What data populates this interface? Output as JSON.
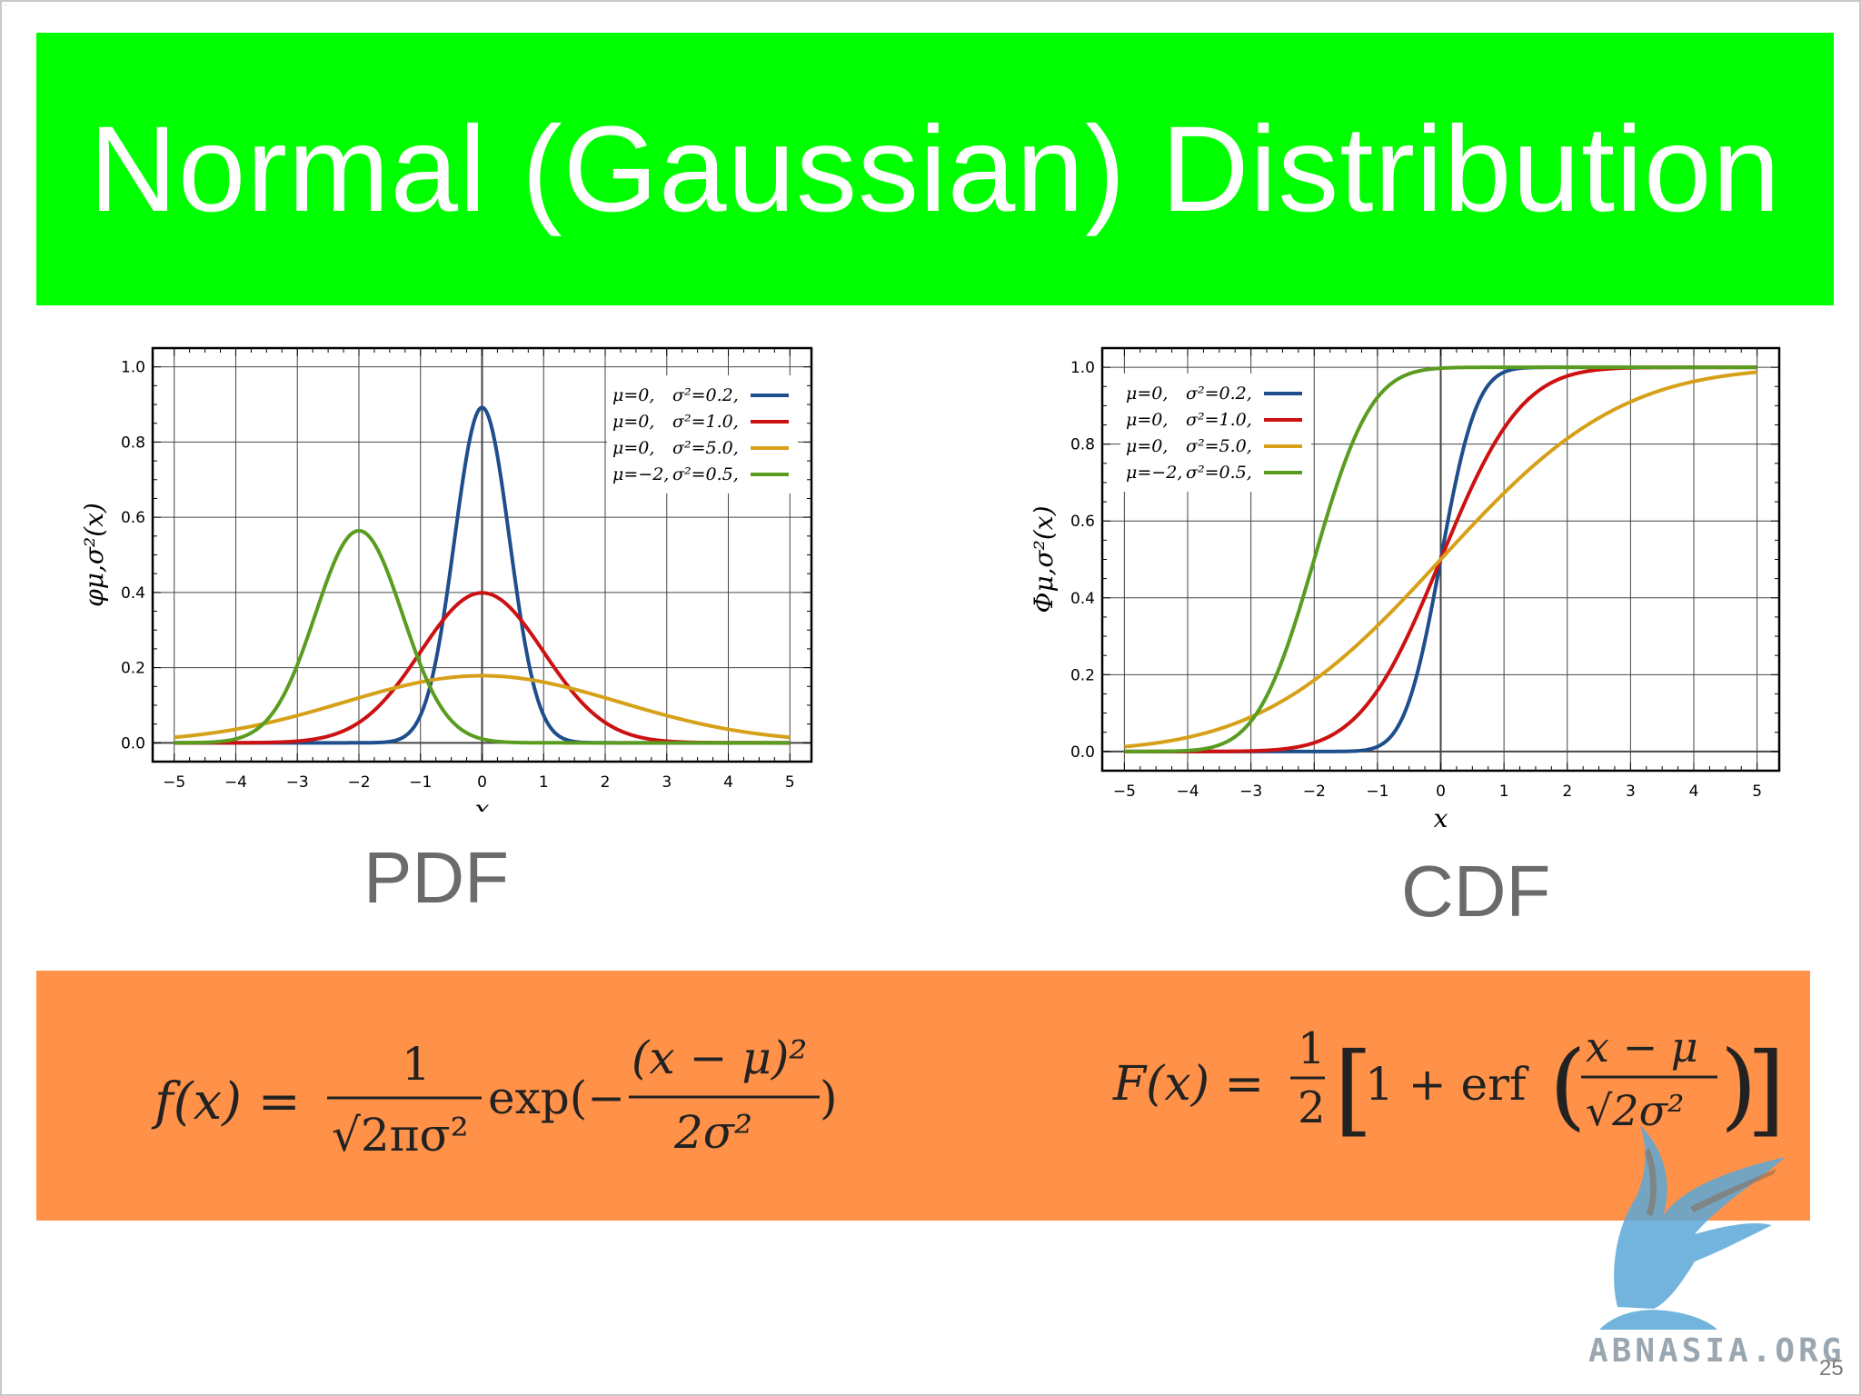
{
  "slide": {
    "title": "Normal (Gaussian) Distribution",
    "page_number": "25",
    "corner_mark": "…",
    "logo_text": "ABNASIA.ORG",
    "colors": {
      "title_banner": "#00ff00",
      "formula_banner": "#ff9148",
      "caption": "#6b6b6b"
    }
  },
  "captions": {
    "pdf": "PDF",
    "cdf": "CDF"
  },
  "formulas": {
    "pdf": {
      "lhs": "f(x) =",
      "numerator": "1",
      "denominator": "√2πσ²",
      "exp": "exp(−",
      "exp_numerator": "(x − μ)²",
      "exp_denominator": "2σ²",
      "close": ")"
    },
    "cdf": {
      "lhs": "F(x) =",
      "numerator": "1",
      "denominator": "2",
      "bracket_open": "[",
      "inner": "1 + erf",
      "paren_open": "(",
      "inner_numerator": "x − μ",
      "inner_denominator": "√2σ²",
      "paren_close": ")",
      "bracket_close": "]"
    }
  },
  "chart_data": [
    {
      "type": "line",
      "function": "pdf",
      "xlabel": "x",
      "ylabel": "φμ,σ²(x)",
      "xlim": [
        -5.35,
        5.35
      ],
      "ylim": [
        -0.05,
        1.05
      ],
      "xticks": [
        -5,
        -4,
        -3,
        -2,
        -1,
        0,
        1,
        2,
        3,
        4,
        5
      ],
      "xtick_labels": [
        "−5",
        "−4",
        "−3",
        "−2",
        "−1",
        "0",
        "1",
        "2",
        "3",
        "4",
        "5"
      ],
      "yticks": [
        0.0,
        0.2,
        0.4,
        0.6,
        0.8,
        1.0
      ],
      "ytick_labels": [
        "0.0",
        "0.2",
        "0.4",
        "0.6",
        "0.8",
        "1.0"
      ],
      "grid": true,
      "legend_position": "top-right",
      "series": [
        {
          "name": "μ=0,   σ²=0.2,",
          "label_mu": "μ=0,",
          "label_var": "σ²=0.2,",
          "mu": 0,
          "variance": 0.2,
          "color": "#1f4e8c"
        },
        {
          "name": "μ=0,   σ²=1.0,",
          "label_mu": "μ=0,",
          "label_var": "σ²=1.0,",
          "mu": 0,
          "variance": 1.0,
          "color": "#cc1111"
        },
        {
          "name": "μ=0,   σ²=5.0,",
          "label_mu": "μ=0,",
          "label_var": "σ²=5.0,",
          "mu": 0,
          "variance": 5.0,
          "color": "#d6a019"
        },
        {
          "name": "μ=−2, σ²=0.5,",
          "label_mu": "μ=−2,",
          "label_var": "σ²=0.5,",
          "mu": -2,
          "variance": 0.5,
          "color": "#5a9c1f"
        }
      ]
    },
    {
      "type": "line",
      "function": "cdf",
      "xlabel": "x",
      "ylabel": "Φμ,σ²(x)",
      "xlim": [
        -5.35,
        5.35
      ],
      "ylim": [
        -0.05,
        1.05
      ],
      "xticks": [
        -5,
        -4,
        -3,
        -2,
        -1,
        0,
        1,
        2,
        3,
        4,
        5
      ],
      "xtick_labels": [
        "−5",
        "−4",
        "−3",
        "−2",
        "−1",
        "0",
        "1",
        "2",
        "3",
        "4",
        "5"
      ],
      "yticks": [
        0.0,
        0.2,
        0.4,
        0.6,
        0.8,
        1.0
      ],
      "ytick_labels": [
        "0.0",
        "0.2",
        "0.4",
        "0.6",
        "0.8",
        "1.0"
      ],
      "grid": true,
      "legend_position": "top-left",
      "series": [
        {
          "name": "μ=0,   σ²=0.2,",
          "label_mu": "μ=0,",
          "label_var": "σ²=0.2,",
          "mu": 0,
          "variance": 0.2,
          "color": "#1f4e8c"
        },
        {
          "name": "μ=0,   σ²=1.0,",
          "label_mu": "μ=0,",
          "label_var": "σ²=1.0,",
          "mu": 0,
          "variance": 1.0,
          "color": "#cc1111"
        },
        {
          "name": "μ=0,   σ²=5.0,",
          "label_mu": "μ=0,",
          "label_var": "σ²=5.0,",
          "mu": 0,
          "variance": 5.0,
          "color": "#d6a019"
        },
        {
          "name": "μ=−2, σ²=0.5,",
          "label_mu": "μ=−2,",
          "label_var": "σ²=0.5,",
          "mu": -2,
          "variance": 0.5,
          "color": "#5a9c1f"
        }
      ]
    }
  ]
}
